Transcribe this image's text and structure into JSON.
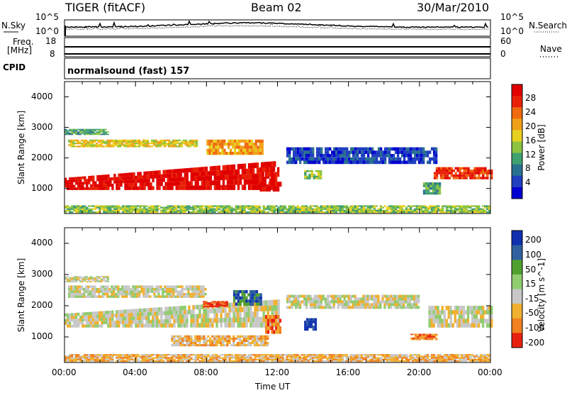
{
  "header": {
    "left": "TIGER (fitACF)",
    "center": "Beam 02",
    "right": "30/Mar/2010"
  },
  "top_panels": {
    "nsky_label": "N.Sky",
    "nsky_ticks": [
      "10^5",
      "10^0"
    ],
    "nsearch_label": "N.Search",
    "nsearch_ticks": [
      "10^5",
      "10^0"
    ],
    "freq_label": "Freq.",
    "freq_unit": "[MHz]",
    "freq_ticks": [
      "18",
      "8"
    ],
    "nave_label": "Nave",
    "nave_ticks": [
      "60",
      "0"
    ],
    "cpid_label": "CPID",
    "cpid_value": "normalsound (fast) 157"
  },
  "chart_data": [
    {
      "type": "heatmap",
      "name": "power",
      "ylabel": "Slant Range [km]",
      "ylim": [
        180,
        4500
      ],
      "yticks": [
        1000,
        2000,
        3000,
        4000
      ],
      "xlim": [
        0,
        24
      ],
      "colorbar": {
        "label": "Power [dB]",
        "ticks": [
          "4",
          "8",
          "12",
          "16",
          "20",
          "24",
          "28"
        ],
        "colors": [
          "#0000d0",
          "#2040c0",
          "#2a7090",
          "#40a070",
          "#8cc440",
          "#e8d020",
          "#f0a018",
          "#f06a10",
          "#e82008",
          "#e00000"
        ]
      },
      "bands": [
        {
          "t0": 0,
          "t1": 11.9,
          "r0": 950,
          "r1": 1350,
          "r1_end": 1900,
          "level": 9
        },
        {
          "t0": 0.2,
          "t1": 7.5,
          "r0": 2350,
          "r1": 2600,
          "level": 5
        },
        {
          "t0": 0,
          "t1": 2.5,
          "r0": 2750,
          "r1": 2950,
          "level": 3
        },
        {
          "t0": 8,
          "t1": 11.2,
          "r0": 2100,
          "r1": 2600,
          "level": 6
        },
        {
          "t0": 11,
          "t1": 12.1,
          "r0": 900,
          "r1": 1700,
          "level": 9
        },
        {
          "t0": 12.5,
          "t1": 21,
          "r0": 1800,
          "r1": 2350,
          "level": 1
        },
        {
          "t0": 20.8,
          "t1": 24,
          "r0": 1300,
          "r1": 1700,
          "level": 8
        },
        {
          "t0": 20.2,
          "t1": 21.2,
          "r0": 800,
          "r1": 1200,
          "level": 3
        },
        {
          "t0": 13.5,
          "t1": 14.5,
          "r0": 1300,
          "r1": 1600,
          "level": 4
        },
        {
          "t0": 0,
          "t1": 24,
          "r0": 200,
          "r1": 450,
          "level": 4
        }
      ]
    },
    {
      "type": "heatmap",
      "name": "velocity",
      "ylabel": "Slant Range [km]",
      "ylim": [
        180,
        4500
      ],
      "yticks": [
        1000,
        2000,
        3000,
        4000
      ],
      "xlim": [
        0,
        24
      ],
      "xlabel": "Time UT",
      "xticks": [
        "00:00",
        "04:00",
        "08:00",
        "12:00",
        "16:00",
        "20:00",
        "00:00"
      ],
      "colorbar": {
        "label": "Velocity [m s^-1]",
        "ticks": [
          "200",
          "100",
          "50",
          "15",
          "-15",
          "-50",
          "-100",
          "-200"
        ],
        "colors": [
          "#1030b0",
          "#3060a0",
          "#50a030",
          "#90cc70",
          "#c8c8c8",
          "#f0b030",
          "#f08020",
          "#e82010"
        ]
      },
      "bands": [
        {
          "t0": 0,
          "t1": 12,
          "r0": 1300,
          "r1": 1750,
          "r1_end": 2200,
          "level": 4
        },
        {
          "t0": 0.2,
          "t1": 8,
          "r0": 2250,
          "r1": 2650,
          "level": 4
        },
        {
          "t0": 0,
          "t1": 2.5,
          "r0": 2750,
          "r1": 2950,
          "level": 4
        },
        {
          "t0": 7.8,
          "t1": 9.2,
          "r0": 1950,
          "r1": 2150,
          "level": 7
        },
        {
          "t0": 9.5,
          "t1": 11,
          "r0": 2000,
          "r1": 2500,
          "level": 1
        },
        {
          "t0": 11.3,
          "t1": 12.2,
          "r0": 1100,
          "r1": 1700,
          "level": 6
        },
        {
          "t0": 13.5,
          "t1": 14.2,
          "r0": 1200,
          "r1": 1600,
          "level": 0
        },
        {
          "t0": 12.5,
          "t1": 20,
          "r0": 1900,
          "r1": 2350,
          "level": 4
        },
        {
          "t0": 20.5,
          "t1": 24,
          "r0": 1300,
          "r1": 2000,
          "level": 4
        },
        {
          "t0": 6,
          "t1": 11.5,
          "r0": 700,
          "r1": 1050,
          "level": 5
        },
        {
          "t0": 19.5,
          "t1": 21,
          "r0": 900,
          "r1": 1100,
          "level": 6
        },
        {
          "t0": 0,
          "t1": 24,
          "r0": 200,
          "r1": 450,
          "level": 5
        }
      ]
    }
  ]
}
